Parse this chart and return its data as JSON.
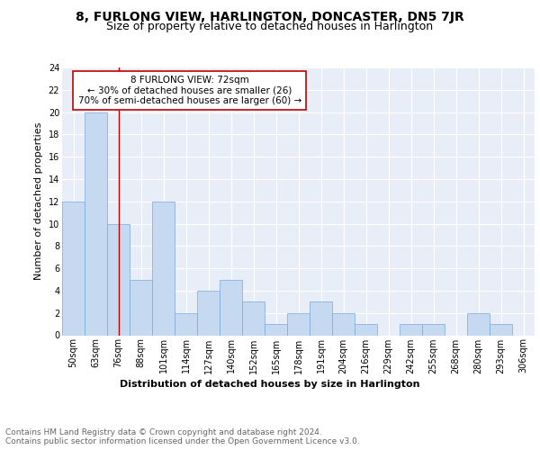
{
  "title": "8, FURLONG VIEW, HARLINGTON, DONCASTER, DN5 7JR",
  "subtitle": "Size of property relative to detached houses in Harlington",
  "xlabel": "Distribution of detached houses by size in Harlington",
  "ylabel": "Number of detached properties",
  "categories": [
    "50sqm",
    "63sqm",
    "76sqm",
    "88sqm",
    "101sqm",
    "114sqm",
    "127sqm",
    "140sqm",
    "152sqm",
    "165sqm",
    "178sqm",
    "191sqm",
    "204sqm",
    "216sqm",
    "229sqm",
    "242sqm",
    "255sqm",
    "268sqm",
    "280sqm",
    "293sqm",
    "306sqm"
  ],
  "values": [
    12,
    20,
    10,
    5,
    12,
    2,
    4,
    5,
    3,
    1,
    2,
    3,
    2,
    1,
    0,
    1,
    1,
    0,
    2,
    1,
    0
  ],
  "bar_color": "#c5d9f1",
  "bar_edge_color": "#7ca6d8",
  "vline_x_index": 2,
  "vline_color": "#c00000",
  "annotation_text": "8 FURLONG VIEW: 72sqm\n← 30% of detached houses are smaller (26)\n70% of semi-detached houses are larger (60) →",
  "annotation_box_color": "white",
  "annotation_box_edge_color": "#c00000",
  "ylim": [
    0,
    24
  ],
  "yticks": [
    0,
    2,
    4,
    6,
    8,
    10,
    12,
    14,
    16,
    18,
    20,
    22,
    24
  ],
  "footer_line1": "Contains HM Land Registry data © Crown copyright and database right 2024.",
  "footer_line2": "Contains public sector information licensed under the Open Government Licence v3.0.",
  "bg_color": "#e8eef8",
  "grid_color": "white",
  "title_fontsize": 10,
  "subtitle_fontsize": 9,
  "axis_label_fontsize": 8,
  "tick_fontsize": 7,
  "footer_fontsize": 6.5,
  "annotation_fontsize": 7.5
}
